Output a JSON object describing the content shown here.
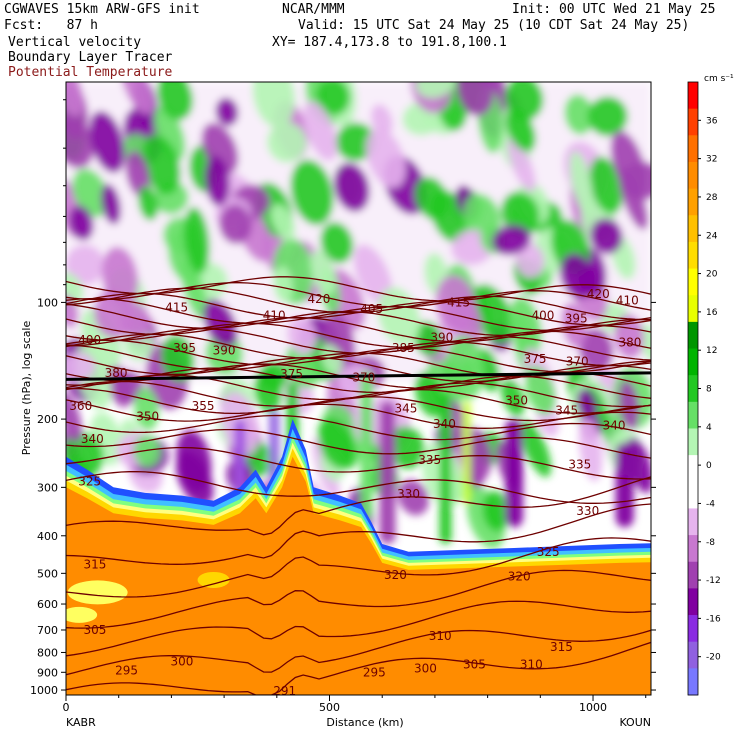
{
  "header": {
    "model": "CGWAVES 15km ARW-GFS init",
    "forecast": "Fcst:   87 h",
    "field1": "Vertical velocity",
    "field2": "Boundary Layer Tracer",
    "field3": "Potential Temperature",
    "center": "NCAR/MMM",
    "init": "Init: 00 UTC Wed 21 May 25",
    "valid": "Valid: 15 UTC Sat 24 May 25 (10 CDT Sat 24 May 25)",
    "xy": "XY= 187.4,173.8 to 191.8,100.1"
  },
  "colors": {
    "theta_contour": "#6e0000",
    "tracer": [
      "#ff8c00",
      "#ffa500",
      "#ffd700",
      "#ffff80",
      "#7fff7f",
      "#40c0ff",
      "#2050ff"
    ],
    "upward": "#30e030",
    "downward": "#a030c0"
  },
  "chart_data": {
    "type": "heatmap",
    "title": "",
    "xlabel": "Distance (km)",
    "ylabel": "Pressure (hPa), log scale",
    "xlim": [
      0,
      1110
    ],
    "ylim": [
      1030,
      27
    ],
    "y_scale": "log",
    "x_ticks": [
      0,
      500,
      1000
    ],
    "x_tick_labels": [
      "0",
      "500",
      "1000"
    ],
    "y_ticks": [
      100,
      200,
      300,
      400,
      500,
      600,
      700,
      800,
      900,
      1000
    ],
    "y_tick_labels": [
      "100",
      "200",
      "300",
      "400",
      "500",
      "600",
      "700",
      "800",
      "900",
      "1000"
    ],
    "endpoints": {
      "left": "KABR",
      "right": "KOUN"
    },
    "colorbar": {
      "units": "cm s⁻¹",
      "levels": [
        -20,
        -16,
        -12,
        -8,
        -4,
        0,
        4,
        8,
        12,
        16,
        20,
        24,
        28,
        32,
        36
      ],
      "level_labels": [
        "-20",
        "-16",
        "-12",
        "-8",
        "-4",
        "0",
        "4",
        "8",
        "12",
        "16",
        "20",
        "24",
        "28",
        "32",
        "36"
      ],
      "colors": [
        "#7878ff",
        "#9060e0",
        "#8a2be2",
        "#8000a0",
        "#a040b0",
        "#c878d0",
        "#e6b4ee",
        "#ffffff",
        "#ffffff",
        "#b4f5b4",
        "#66e066",
        "#22c822",
        "#00b400",
        "#009600",
        "#e8ff00",
        "#ffff00",
        "#ffdd00",
        "#ffc000",
        "#ffa000",
        "#ff8c00",
        "#ff7000",
        "#ff4000",
        "#ff0000"
      ]
    },
    "theta_labels": [
      {
        "v": "420",
        "x": 480,
        "p": 98
      },
      {
        "v": "420",
        "x": 1010,
        "p": 95
      },
      {
        "v": "415",
        "x": 210,
        "p": 103
      },
      {
        "v": "415",
        "x": 745,
        "p": 100
      },
      {
        "v": "410",
        "x": 395,
        "p": 108
      },
      {
        "v": "410",
        "x": 1065,
        "p": 99
      },
      {
        "v": "405",
        "x": 580,
        "p": 104
      },
      {
        "v": "400",
        "x": 45,
        "p": 125
      },
      {
        "v": "400",
        "x": 905,
        "p": 108
      },
      {
        "v": "395",
        "x": 225,
        "p": 131
      },
      {
        "v": "395",
        "x": 968,
        "p": 110
      },
      {
        "v": "390",
        "x": 300,
        "p": 133
      },
      {
        "v": "390",
        "x": 713,
        "p": 123
      },
      {
        "v": "385",
        "x": 640,
        "p": 131
      },
      {
        "v": "380",
        "x": 95,
        "p": 152
      },
      {
        "v": "380",
        "x": 1070,
        "p": 127
      },
      {
        "v": "375",
        "x": 428,
        "p": 153
      },
      {
        "v": "375",
        "x": 890,
        "p": 140
      },
      {
        "v": "370",
        "x": 565,
        "p": 156
      },
      {
        "v": "370",
        "x": 970,
        "p": 142
      },
      {
        "v": "360",
        "x": 28,
        "p": 185
      },
      {
        "v": "355",
        "x": 260,
        "p": 185
      },
      {
        "v": "350",
        "x": 155,
        "p": 197
      },
      {
        "v": "350",
        "x": 855,
        "p": 179
      },
      {
        "v": "345",
        "x": 645,
        "p": 188
      },
      {
        "v": "345",
        "x": 950,
        "p": 190
      },
      {
        "v": "340",
        "x": 50,
        "p": 225
      },
      {
        "v": "340",
        "x": 718,
        "p": 206
      },
      {
        "v": "340",
        "x": 1040,
        "p": 208
      },
      {
        "v": "335",
        "x": 690,
        "p": 255
      },
      {
        "v": "335",
        "x": 975,
        "p": 262
      },
      {
        "v": "330",
        "x": 650,
        "p": 312
      },
      {
        "v": "330",
        "x": 990,
        "p": 345
      },
      {
        "v": "325",
        "x": 45,
        "p": 290
      },
      {
        "v": "325",
        "x": 915,
        "p": 440
      },
      {
        "v": "320",
        "x": 625,
        "p": 505
      },
      {
        "v": "320",
        "x": 860,
        "p": 510
      },
      {
        "v": "315",
        "x": 55,
        "p": 475
      },
      {
        "v": "315",
        "x": 940,
        "p": 775
      },
      {
        "v": "310",
        "x": 710,
        "p": 725
      },
      {
        "v": "310",
        "x": 883,
        "p": 860
      },
      {
        "v": "305",
        "x": 55,
        "p": 700
      },
      {
        "v": "305",
        "x": 775,
        "p": 860
      },
      {
        "v": "300",
        "x": 220,
        "p": 845
      },
      {
        "v": "300",
        "x": 682,
        "p": 880
      },
      {
        "v": "295",
        "x": 115,
        "p": 890
      },
      {
        "v": "295",
        "x": 585,
        "p": 900
      },
      {
        "v": "291",
        "x": 415,
        "p": 1005
      }
    ]
  }
}
